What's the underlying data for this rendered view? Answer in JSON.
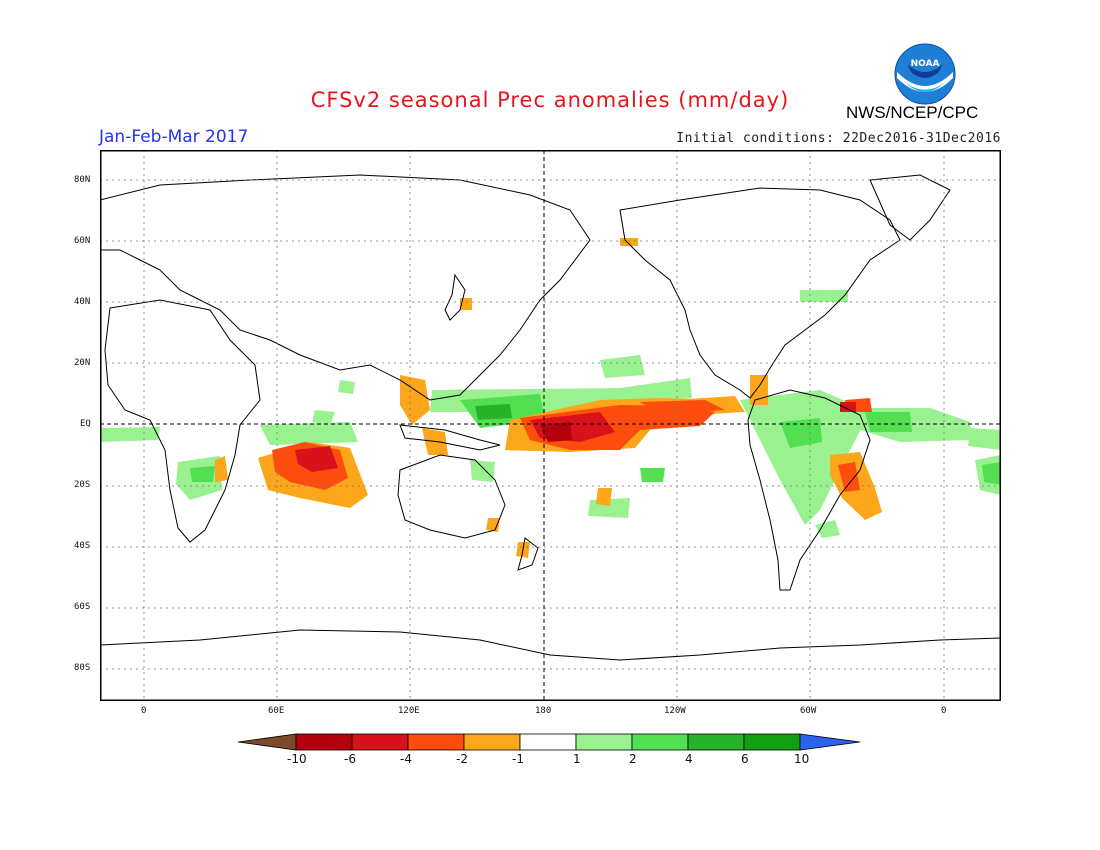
{
  "header": {
    "title": "CFSv2 seasonal Prec anomalies (mm/day)",
    "agency": "NWS/NCEP/CPC",
    "period": "Jan-Feb-Mar 2017",
    "initial_conditions": "Initial conditions: 22Dec2016-31Dec2016",
    "logo_text": "NOAA"
  },
  "axes": {
    "lat_labels": [
      "80N",
      "60N",
      "40N",
      "20N",
      "EQ",
      "20S",
      "40S",
      "60S",
      "80S"
    ],
    "lon_labels": [
      "0",
      "60E",
      "120E",
      "180",
      "120W",
      "60W",
      "0"
    ]
  },
  "colorbar": {
    "labels": [
      "-10",
      "-6",
      "-4",
      "-2",
      "-1",
      "1",
      "2",
      "4",
      "6",
      "10"
    ],
    "colors": [
      "#7a4a2a",
      "#b3000c",
      "#d8111b",
      "#fc4d0f",
      "#fca61b",
      "#ffffff",
      "#9af190",
      "#52e052",
      "#27b327",
      "#12a012",
      "#2a63ee"
    ]
  },
  "colors": {
    "dry_moderate": "#fca61b",
    "dry_strong": "#fc4d0f",
    "dry_extreme": "#d8111b",
    "wet_light": "#9af190",
    "wet_moderate": "#52e052",
    "wet_strong": "#27b327"
  }
}
